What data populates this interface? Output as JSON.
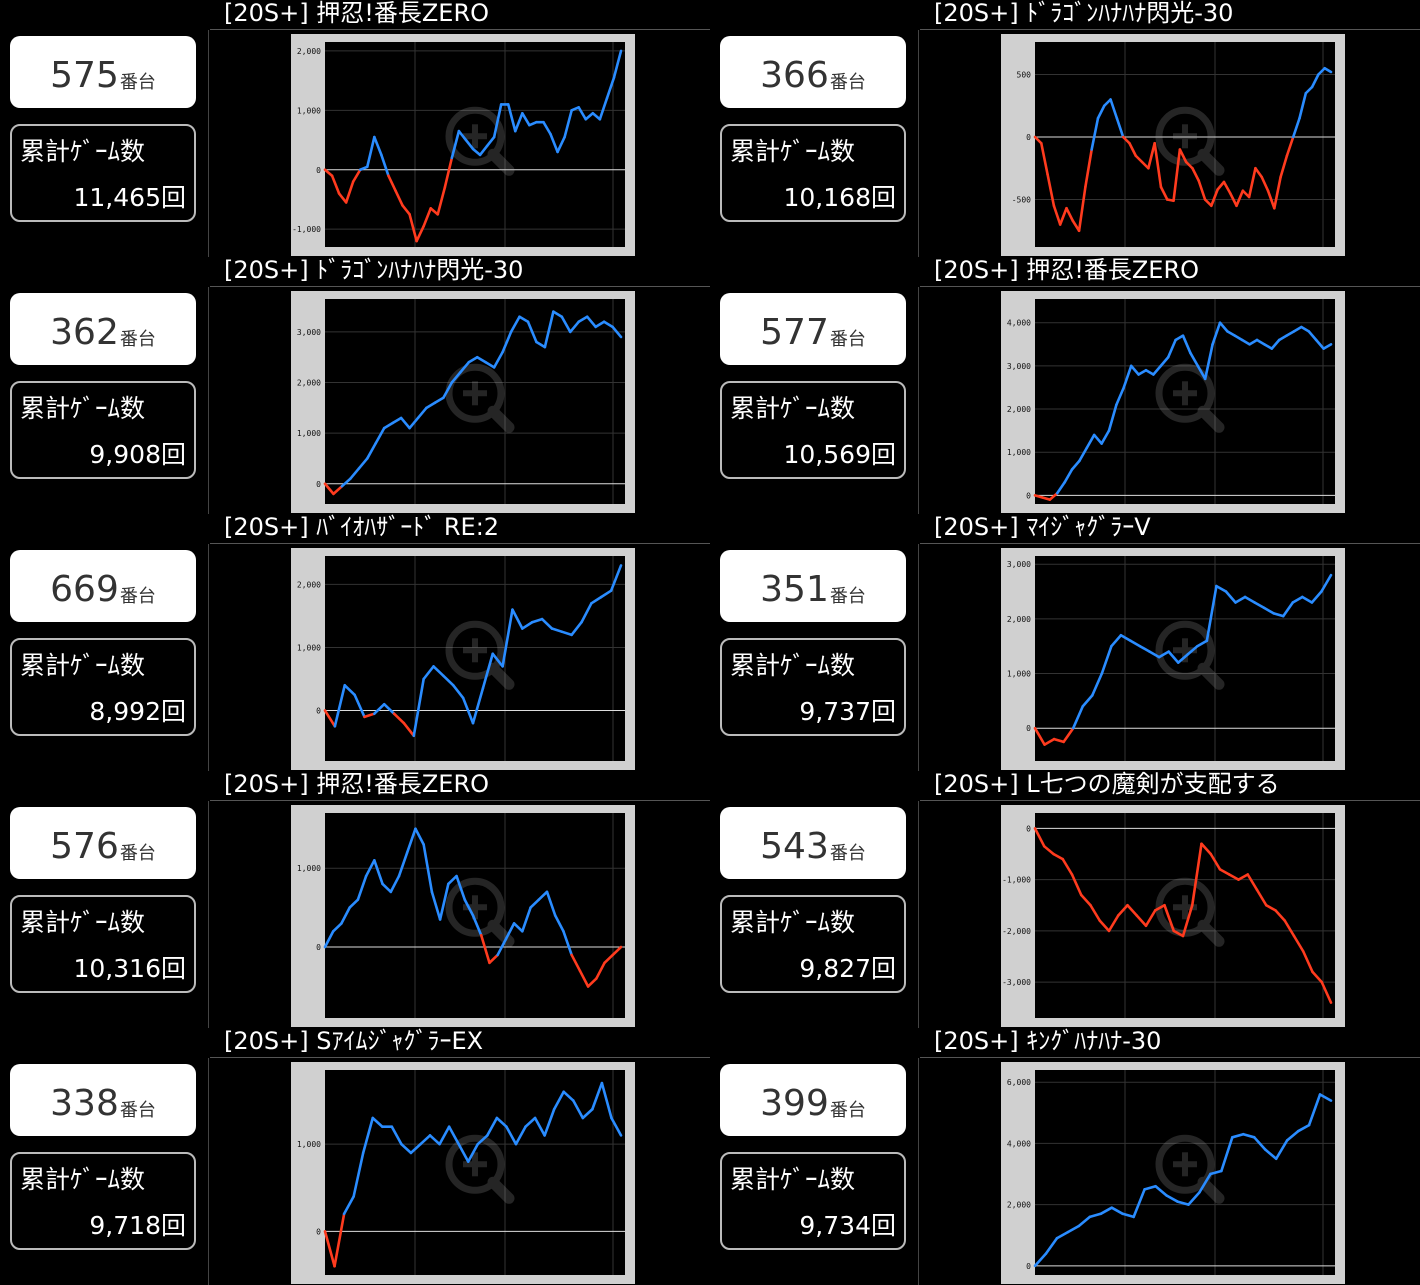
{
  "unit_suffix": "番台",
  "games_label": "累計ｹﾞｰﾑ数",
  "games_suffix": "回",
  "colors": {
    "positive": "#2a8cff",
    "negative": "#ff3b1e",
    "plot_bg": "#000000",
    "frame": "#d0d0d0"
  },
  "machines": [
    {
      "title": "[20S+] 押忍!番長ZERO",
      "number": "575",
      "games": "11,465"
    },
    {
      "title": "[20S+] ﾄﾞﾗｺﾞﾝﾊﾅﾊﾅ閃光-30",
      "number": "366",
      "games": "10,168"
    },
    {
      "title": "[20S+] ﾄﾞﾗｺﾞﾝﾊﾅﾊﾅ閃光-30",
      "number": "362",
      "games": "9,908"
    },
    {
      "title": "[20S+] 押忍!番長ZERO",
      "number": "577",
      "games": "10,569"
    },
    {
      "title": "[20S+] ﾊﾞｲｵﾊｻﾞｰﾄﾞ RE:2",
      "number": "669",
      "games": "8,992"
    },
    {
      "title": "[20S+] ﾏｲｼﾞｬｸﾞﾗｰV",
      "number": "351",
      "games": "9,737"
    },
    {
      "title": "[20S+] 押忍!番長ZERO",
      "number": "576",
      "games": "10,316"
    },
    {
      "title": "[20S+] L七つの魔剣が支配する",
      "number": "543",
      "games": "9,827"
    },
    {
      "title": "[20S+] SｱｲﾑｼﾞｬｸﾞﾗｰEX",
      "number": "338",
      "games": "9,718"
    },
    {
      "title": "[20S+] ｷﾝｸﾞﾊﾅﾊﾅ-30",
      "number": "399",
      "games": "9,734"
    }
  ],
  "chart_data": [
    {
      "type": "line",
      "ylim": [
        -1300,
        2150
      ],
      "yticks": [
        -1000,
        0,
        1000,
        2000
      ],
      "ytick_labels": [
        "-1,000",
        "0",
        "1,000",
        "2,000"
      ],
      "values": [
        0,
        -100,
        -400,
        -550,
        -200,
        0,
        50,
        550,
        250,
        -100,
        -350,
        -600,
        -750,
        -1200,
        -950,
        -650,
        -750,
        -300,
        200,
        650,
        500,
        350,
        250,
        400,
        550,
        1100,
        1100,
        650,
        950,
        750,
        800,
        800,
        600,
        300,
        550,
        1000,
        1050,
        850,
        950,
        850,
        1200,
        1550,
        2000
      ]
    },
    {
      "type": "line",
      "ylim": [
        -880,
        760
      ],
      "yticks": [
        -500,
        0,
        500
      ],
      "ytick_labels": [
        "-500",
        "0",
        "500"
      ],
      "values": [
        0,
        -50,
        -300,
        -550,
        -700,
        -570,
        -670,
        -750,
        -400,
        -100,
        150,
        250,
        300,
        150,
        0,
        -50,
        -150,
        -200,
        -250,
        -50,
        -400,
        -500,
        -510,
        -100,
        -200,
        -250,
        -350,
        -500,
        -550,
        -420,
        -360,
        -450,
        -550,
        -430,
        -480,
        -250,
        -320,
        -430,
        -570,
        -320,
        -150,
        0,
        150,
        350,
        400,
        500,
        550,
        520
      ]
    },
    {
      "type": "line",
      "ylim": [
        -400,
        3650
      ],
      "yticks": [
        0,
        1000,
        2000,
        3000
      ],
      "ytick_labels": [
        "0",
        "1,000",
        "2,000",
        "3,000"
      ],
      "values": [
        0,
        -200,
        -50,
        100,
        300,
        500,
        800,
        1100,
        1200,
        1300,
        1100,
        1300,
        1500,
        1600,
        1700,
        2000,
        2200,
        2400,
        2500,
        2400,
        2300,
        2600,
        3000,
        3300,
        3200,
        2800,
        2700,
        3400,
        3300,
        3000,
        3200,
        3300,
        3100,
        3200,
        3100,
        2900
      ]
    },
    {
      "type": "line",
      "ylim": [
        -200,
        4550
      ],
      "yticks": [
        0,
        1000,
        2000,
        3000,
        4000
      ],
      "ytick_labels": [
        "0",
        "1,000",
        "2,000",
        "3,000",
        "4,000"
      ],
      "values": [
        0,
        -50,
        -100,
        50,
        300,
        600,
        800,
        1100,
        1400,
        1200,
        1500,
        2100,
        2500,
        3000,
        2800,
        2900,
        2800,
        3000,
        3200,
        3600,
        3700,
        3300,
        3000,
        2700,
        3500,
        4000,
        3800,
        3700,
        3600,
        3500,
        3600,
        3500,
        3400,
        3600,
        3700,
        3800,
        3900,
        3800,
        3600,
        3400,
        3500
      ]
    },
    {
      "type": "line",
      "ylim": [
        -800,
        2450
      ],
      "yticks": [
        0,
        1000,
        2000
      ],
      "ytick_labels": [
        "0",
        "1,000",
        "2,000"
      ],
      "values": [
        0,
        -250,
        400,
        250,
        -100,
        -50,
        100,
        -50,
        -200,
        -400,
        500,
        700,
        550,
        400,
        200,
        -200,
        350,
        900,
        700,
        1600,
        1300,
        1400,
        1450,
        1300,
        1250,
        1200,
        1400,
        1700,
        1800,
        1900,
        2300
      ]
    },
    {
      "type": "line",
      "ylim": [
        -600,
        3150
      ],
      "yticks": [
        0,
        1000,
        2000,
        3000
      ],
      "ytick_labels": [
        "0",
        "1,000",
        "2,000",
        "3,000"
      ],
      "values": [
        0,
        -300,
        -200,
        -250,
        0,
        400,
        600,
        1000,
        1500,
        1700,
        1600,
        1500,
        1400,
        1300,
        1400,
        1200,
        1350,
        1500,
        1600,
        2600,
        2500,
        2300,
        2400,
        2300,
        2200,
        2100,
        2050,
        2300,
        2400,
        2300,
        2500,
        2800
      ]
    },
    {
      "type": "line",
      "ylim": [
        -900,
        1700
      ],
      "yticks": [
        0,
        1000
      ],
      "ytick_labels": [
        "0",
        "1,000"
      ],
      "values": [
        0,
        200,
        300,
        500,
        600,
        900,
        1100,
        800,
        700,
        900,
        1200,
        1500,
        1300,
        700,
        350,
        800,
        900,
        600,
        400,
        150,
        -200,
        -100,
        100,
        300,
        200,
        500,
        600,
        700,
        400,
        200,
        -100,
        -300,
        -500,
        -400,
        -200,
        -100,
        0
      ]
    },
    {
      "type": "line",
      "ylim": [
        -3700,
        300
      ],
      "yticks": [
        -3000,
        -2000,
        -1000,
        0
      ],
      "ytick_labels": [
        "-3,000",
        "-2,000",
        "-1,000",
        "0"
      ],
      "values": [
        0,
        -350,
        -500,
        -600,
        -900,
        -1300,
        -1500,
        -1800,
        -2000,
        -1700,
        -1500,
        -1700,
        -1900,
        -1600,
        -1500,
        -2000,
        -2100,
        -1500,
        -300,
        -500,
        -800,
        -900,
        -1000,
        -900,
        -1200,
        -1500,
        -1600,
        -1800,
        -2100,
        -2400,
        -2800,
        -3000,
        -3400
      ]
    },
    {
      "type": "line",
      "ylim": [
        -500,
        1850
      ],
      "yticks": [
        0,
        1000
      ],
      "ytick_labels": [
        "0",
        "1,000"
      ],
      "values": [
        0,
        -400,
        200,
        400,
        900,
        1300,
        1200,
        1200,
        1000,
        900,
        1000,
        1100,
        1000,
        1200,
        1000,
        800,
        1000,
        1100,
        1300,
        1200,
        1000,
        1200,
        1300,
        1100,
        1400,
        1600,
        1500,
        1300,
        1400,
        1700,
        1300,
        1100
      ]
    },
    {
      "type": "line",
      "ylim": [
        -300,
        6400
      ],
      "yticks": [
        0,
        2000,
        4000,
        6000
      ],
      "ytick_labels": [
        "0",
        "2,000",
        "4,000",
        "6,000"
      ],
      "values": [
        0,
        400,
        900,
        1100,
        1300,
        1600,
        1700,
        1900,
        1700,
        1600,
        2500,
        2600,
        2300,
        2100,
        2000,
        2400,
        3000,
        3100,
        4200,
        4300,
        4200,
        3800,
        3500,
        4100,
        4400,
        4600,
        5600,
        5400
      ]
    }
  ]
}
